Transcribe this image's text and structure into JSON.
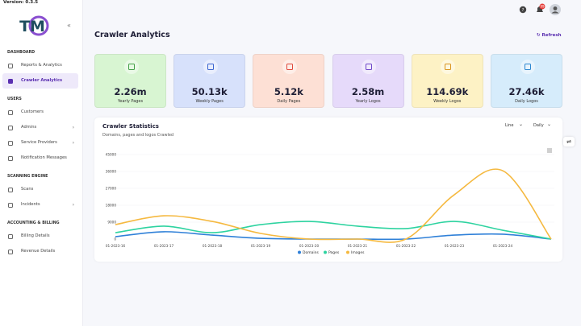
{
  "version": "Version: 0.3.5",
  "logo": "TM",
  "notification_count": "99",
  "sidebar": {
    "sections": [
      {
        "title": "DASHBOARD",
        "items": [
          "Reports & Analytics",
          "Crawler Analytics"
        ]
      },
      {
        "title": "USERS",
        "items": [
          "Customers",
          "Admins",
          "Service Providers",
          "Notification Messages"
        ]
      },
      {
        "title": "SCANNING ENGINE",
        "items": [
          "Scans",
          "Incidents"
        ]
      },
      {
        "title": "ACCOUNTING & BILLING",
        "items": [
          "Billing Details",
          "Revenue Details"
        ]
      }
    ]
  },
  "page": {
    "title": "Crawler Analytics",
    "refresh": "Refresh"
  },
  "cards": [
    {
      "value": "2.26m",
      "label": "Yearly Pages"
    },
    {
      "value": "50.13k",
      "label": "Weekly Pages"
    },
    {
      "value": "5.12k",
      "label": "Daily Pages"
    },
    {
      "value": "2.58m",
      "label": "Yearly Logos"
    },
    {
      "value": "114.69k",
      "label": "Weekly Logos"
    },
    {
      "value": "27.46k",
      "label": "Daily Logos"
    }
  ],
  "chart": {
    "type": "line",
    "title": "Crawler Statistics",
    "subtitle": "Domains, pages and logos Crawled",
    "controls": [
      "Line",
      "Daily"
    ],
    "categories": [
      "01-2023-16",
      "01-2023-17",
      "01-2023-18",
      "01-2023-19",
      "01-2023-20",
      "01-2023-21",
      "01-2023-22",
      "01-2023-23",
      "01-2023-24",
      null
    ],
    "series": [
      {
        "name": "Domains",
        "color": "#2f80d8",
        "values": [
          1300,
          3900,
          2100,
          400,
          0,
          0,
          0,
          2100,
          2600,
          0
        ]
      },
      {
        "name": "Pages",
        "color": "#2ed3a0",
        "values": [
          3400,
          6900,
          3400,
          7700,
          9400,
          6900,
          5600,
          9400,
          4700,
          0
        ]
      },
      {
        "name": "Images",
        "color": "#f5b940",
        "values": [
          7700,
          12400,
          9400,
          3000,
          0,
          0,
          0,
          23600,
          36400,
          0
        ]
      }
    ],
    "ylim": [
      0,
      45000
    ],
    "yticks": [
      0,
      9000,
      18000,
      27000,
      36000,
      45000
    ],
    "grid": true
  }
}
